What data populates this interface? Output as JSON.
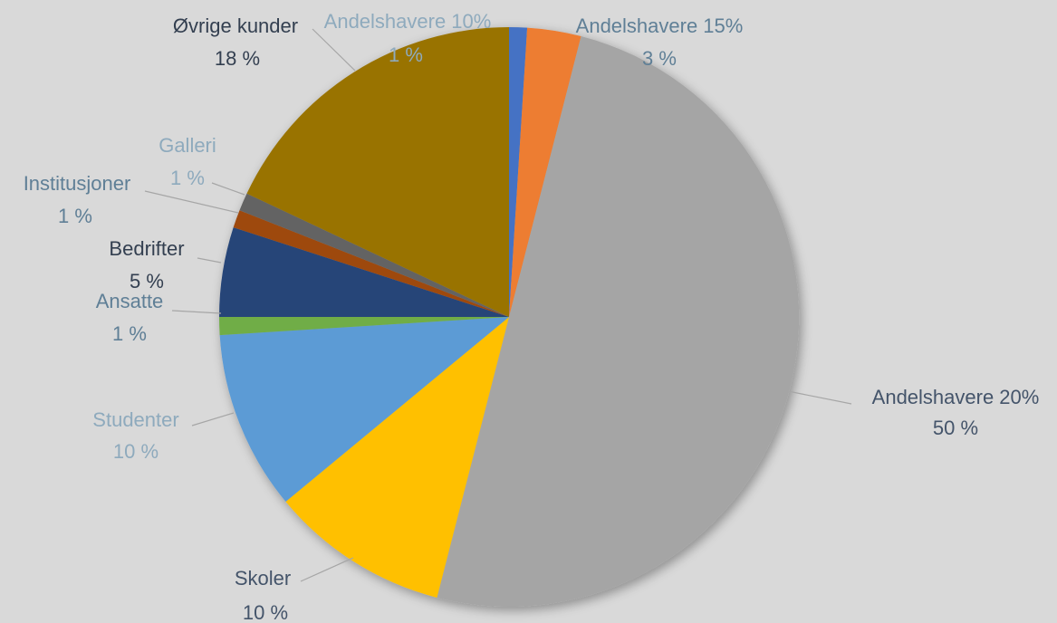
{
  "chart_data": {
    "type": "pie",
    "categories": [
      "Andelshavere 10%",
      "Andelshavere 15%",
      "Andelshavere 20%",
      "Skoler",
      "Studenter",
      "Ansatte",
      "Bedrifter",
      "Institusjoner",
      "Galleri",
      "Øvrige kunder"
    ],
    "values": [
      1,
      3,
      50,
      10,
      10,
      1,
      5,
      1,
      1,
      18
    ],
    "value_labels": [
      "1 %",
      "3 %",
      "50 %",
      "10 %",
      "10 %",
      "1 %",
      "5 %",
      "1 %",
      "1 %",
      "18 %"
    ],
    "colors": [
      "#4472c4",
      "#ed7d31",
      "#a5a5a5",
      "#ffc000",
      "#5b9bd5",
      "#70ad47",
      "#264478",
      "#9e480e",
      "#636363",
      "#997300"
    ]
  }
}
